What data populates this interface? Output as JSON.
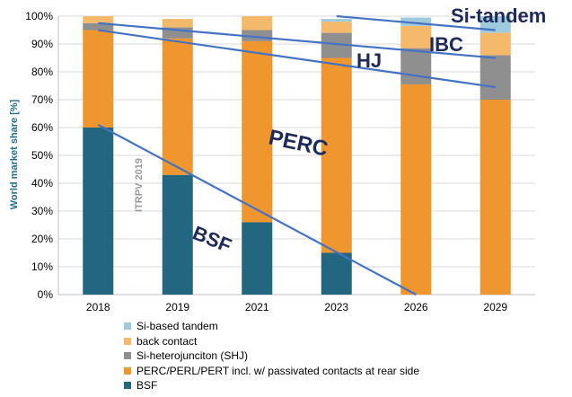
{
  "chart_data": {
    "type": "bar",
    "stacked": true,
    "categories": [
      "2018",
      "2019",
      "2021",
      "2023",
      "2026",
      "2029"
    ],
    "series": [
      {
        "name": "BSF",
        "color": "#236680",
        "values": [
          60,
          43,
          26,
          15,
          0,
          0
        ]
      },
      {
        "name": "PERC/PERL/PERT incl. w/ passivated contacts at rear side",
        "color": "#f0962e",
        "values": [
          35,
          49,
          65,
          70,
          75.5,
          70
        ]
      },
      {
        "name": "Si-heterojunciton (SHJ)",
        "color": "#8f8f8f",
        "values": [
          2.5,
          4,
          4,
          9,
          13,
          16
        ]
      },
      {
        "name": "back contact",
        "color": "#f5b96b",
        "values": [
          2.5,
          3,
          5,
          4,
          8,
          8
        ]
      },
      {
        "name": "Si-based tandem",
        "color": "#9fc9dd",
        "values": [
          0,
          0,
          0,
          1,
          3,
          6
        ]
      }
    ],
    "ylabel": "World market share [%]",
    "ylim": [
      0,
      100
    ],
    "yticks": [
      "0%",
      "10%",
      "20%",
      "30%",
      "40%",
      "50%",
      "60%",
      "70%",
      "80%",
      "90%",
      "100%"
    ],
    "legend_position": "bottom-left",
    "trend_lines": [
      {
        "label": "BSF",
        "points": [
          [
            "2018",
            61
          ],
          [
            "2026",
            0
          ]
        ]
      },
      {
        "label": "PERC",
        "points": [
          [
            "2018",
            95
          ],
          [
            "2029",
            74.5
          ]
        ]
      },
      {
        "label": "HJ",
        "points": [
          [
            "2018",
            97.5
          ],
          [
            "2029",
            85
          ]
        ]
      },
      {
        "label": "Si-tandem",
        "points": [
          [
            "2023",
            100
          ],
          [
            "2029",
            95
          ]
        ]
      }
    ],
    "annotations": [
      "Si-tandem",
      "IBC",
      "HJ",
      "PERC",
      "BSF",
      "ITRPV 2019"
    ]
  }
}
